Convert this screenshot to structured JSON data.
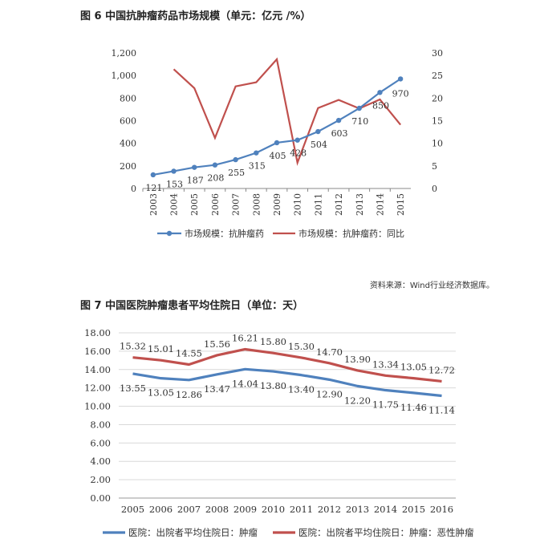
{
  "fig6": {
    "title": "图 6   中国抗肿瘤药品市场规模（单元：亿元 /%）",
    "chart_data": {
      "type": "line",
      "x": [
        "2003",
        "2004",
        "2005",
        "2006",
        "2007",
        "2008",
        "2009",
        "2010",
        "2011",
        "2012",
        "2013",
        "2014",
        "2015"
      ],
      "series": [
        {
          "name": "市场规模：抗肿瘤药",
          "axis": "left",
          "color": "#4f81bd",
          "values": [
            121,
            153,
            187,
            208,
            255,
            315,
            405,
            428,
            504,
            603,
            710,
            850,
            970
          ],
          "labels": [
            "121",
            "153",
            "187",
            "208",
            "255",
            "315",
            "405",
            "428",
            "504",
            "603",
            "710",
            "850",
            "970"
          ]
        },
        {
          "name": "市场规模：抗肿瘤药：同比",
          "axis": "right",
          "color": "#c0504d",
          "values": [
            null,
            26.4,
            22.2,
            11.2,
            22.6,
            23.5,
            28.6,
            5.7,
            17.8,
            19.6,
            17.7,
            19.7,
            14.1
          ]
        }
      ],
      "ylim_left": [
        0,
        1200
      ],
      "yticks_left": [
        "0",
        "200",
        "400",
        "600",
        "800",
        "1,000",
        "1,200"
      ],
      "ylim_right": [
        0,
        30
      ],
      "yticks_right": [
        "0",
        "5",
        "10",
        "15",
        "20",
        "25",
        "30"
      ],
      "grid": false,
      "legend": "bottom"
    }
  },
  "source_text": "资料来源：Wind行业经济数据库。",
  "fig7": {
    "title": "图 7   中国医院肿瘤患者平均住院日（单位：天）",
    "chart_data": {
      "type": "line",
      "x": [
        "2005",
        "2006",
        "2007",
        "2008",
        "2009",
        "2010",
        "2011",
        "2012",
        "2013",
        "2014",
        "2015",
        "2016"
      ],
      "series": [
        {
          "name": "医院：出院者平均住院日：肿瘤",
          "color": "#4f81bd",
          "values": [
            13.55,
            13.05,
            12.86,
            13.47,
            14.04,
            13.8,
            13.4,
            12.9,
            12.2,
            11.75,
            11.46,
            11.14
          ],
          "labels": [
            "13.55",
            "13.05",
            "12.86",
            "13.47",
            "14.04",
            "13.80",
            "13.40",
            "12.90",
            "12.20",
            "11.75",
            "11.46",
            "11.14"
          ]
        },
        {
          "name": "医院：出院者平均住院日：肿瘤：恶性肿瘤",
          "color": "#c0504d",
          "values": [
            15.32,
            15.01,
            14.55,
            15.56,
            16.21,
            15.8,
            15.3,
            14.7,
            13.9,
            13.34,
            13.05,
            12.72
          ],
          "labels": [
            "15.32",
            "15.01",
            "14.55",
            "15.56",
            "16.21",
            "15.80",
            "15.30",
            "14.70",
            "13.90",
            "13.34",
            "13.05",
            "12.72"
          ]
        }
      ],
      "ylim": [
        0,
        18
      ],
      "yticks": [
        "0.00",
        "2.00",
        "4.00",
        "6.00",
        "8.00",
        "10.00",
        "12.00",
        "14.00",
        "16.00",
        "18.00"
      ],
      "grid": true,
      "legend": "bottom"
    }
  }
}
